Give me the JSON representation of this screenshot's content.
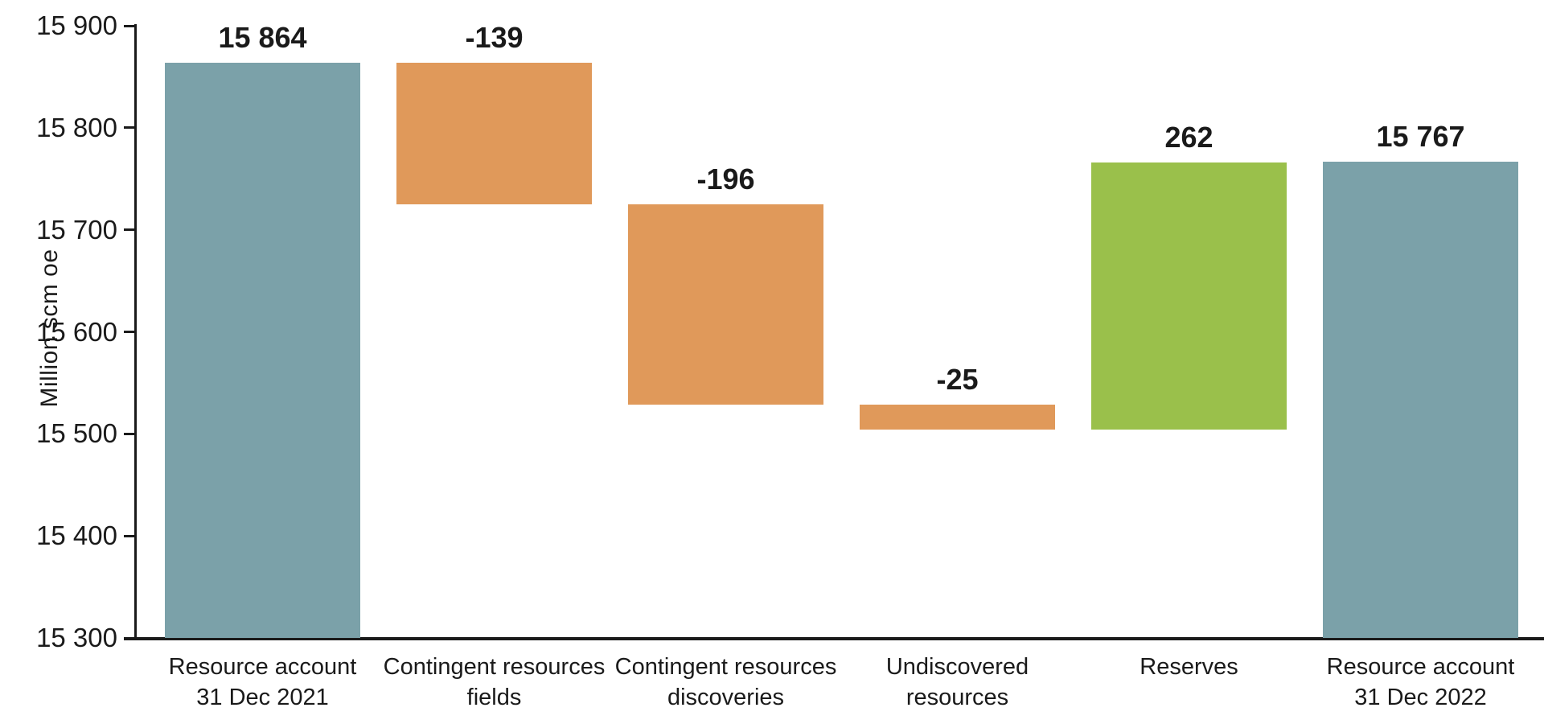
{
  "chart_data": {
    "type": "bar",
    "subtype": "waterfall",
    "title": "",
    "ylabel": "Million scm oe",
    "xlabel": "",
    "ylim": [
      15300,
      15900
    ],
    "ytick_step": 100,
    "ytick_labels": [
      "15 300",
      "15 400",
      "15 500",
      "15 600",
      "15 700",
      "15 800",
      "15 900"
    ],
    "grid": "off",
    "legend": "none",
    "bars": [
      {
        "id": "resource-account-31-dec-2021",
        "label_lines": [
          "Resource account",
          "31 Dec 2021"
        ],
        "value_label": "15 864",
        "start": 15300,
        "end": 15864,
        "role": "total"
      },
      {
        "id": "contingent-resources-fields",
        "label_lines": [
          "Contingent resources",
          "fields"
        ],
        "value_label": "-139",
        "start": 15864,
        "end": 15725,
        "role": "decrease"
      },
      {
        "id": "contingent-resources-discoveries",
        "label_lines": [
          "Contingent resources",
          "discoveries"
        ],
        "value_label": "-196",
        "start": 15725,
        "end": 15529,
        "role": "decrease"
      },
      {
        "id": "undiscovered-resources",
        "label_lines": [
          "Undiscovered",
          "resources"
        ],
        "value_label": "-25",
        "start": 15529,
        "end": 15504,
        "role": "decrease"
      },
      {
        "id": "reserves",
        "label_lines": [
          "Reserves"
        ],
        "value_label": "262",
        "start": 15504,
        "end": 15766,
        "role": "increase"
      },
      {
        "id": "resource-account-31-dec-2022",
        "label_lines": [
          "Resource account",
          "31 Dec 2022"
        ],
        "value_label": "15 767",
        "start": 15300,
        "end": 15767,
        "role": "total"
      }
    ],
    "colors": {
      "total": "#7ba1a9",
      "decrease": "#e0995a",
      "increase": "#9ac04b",
      "axis": "#1a1a1a",
      "text": "#1a1a1a"
    }
  }
}
